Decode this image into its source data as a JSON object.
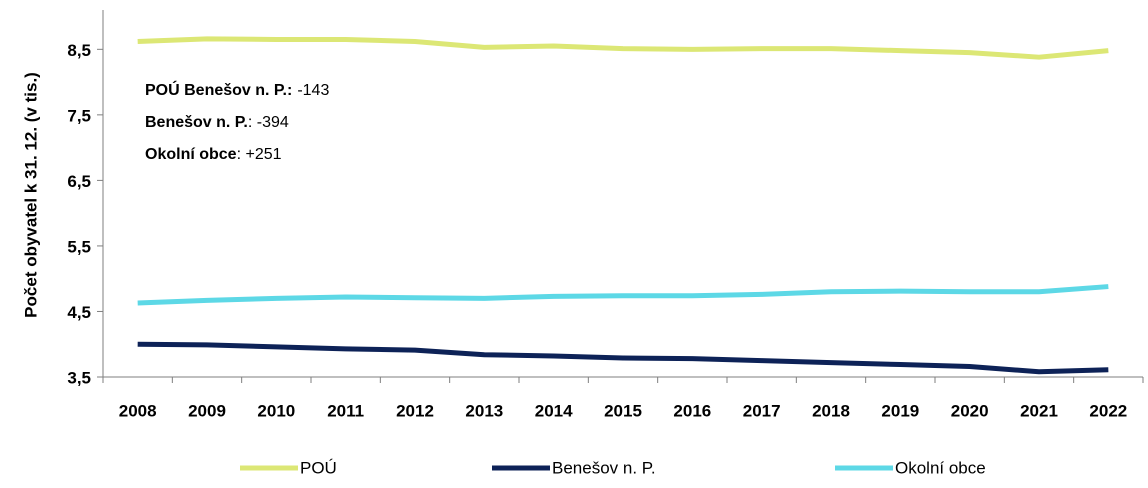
{
  "chart_data": {
    "type": "line",
    "y_label": "Počet obyvatel k 31. 12. (v tis.)",
    "categories": [
      "2008",
      "2009",
      "2010",
      "2011",
      "2012",
      "2013",
      "2014",
      "2015",
      "2016",
      "2017",
      "2018",
      "2019",
      "2020",
      "2021",
      "2022"
    ],
    "series": [
      {
        "name": "POÚ",
        "color": "#dce775",
        "values": [
          8.62,
          8.66,
          8.65,
          8.65,
          8.62,
          8.53,
          8.55,
          8.51,
          8.5,
          8.51,
          8.51,
          8.48,
          8.45,
          8.38,
          8.48
        ]
      },
      {
        "name": "Benešov n. P.",
        "color": "#0d2257",
        "values": [
          4.0,
          3.99,
          3.96,
          3.93,
          3.91,
          3.84,
          3.82,
          3.79,
          3.78,
          3.75,
          3.72,
          3.69,
          3.66,
          3.58,
          3.61
        ]
      },
      {
        "name": "Okolní obce",
        "color": "#5dd8e6",
        "values": [
          4.63,
          4.67,
          4.7,
          4.72,
          4.71,
          4.7,
          4.73,
          4.74,
          4.74,
          4.76,
          4.8,
          4.81,
          4.8,
          4.8,
          4.88
        ]
      }
    ],
    "ylim": [
      3.5,
      9.1
    ],
    "yticks": [
      {
        "value": 3.5,
        "label": "3,5"
      },
      {
        "value": 4.5,
        "label": "4,5"
      },
      {
        "value": 5.5,
        "label": "5,5"
      },
      {
        "value": 6.5,
        "label": "6,5"
      },
      {
        "value": 7.5,
        "label": "7,5"
      },
      {
        "value": 8.5,
        "label": "8,5"
      }
    ],
    "grid": false,
    "legend": "bottom",
    "annotations": [
      {
        "bold": "POÚ Benešov n. P.:",
        "text": "-143"
      },
      {
        "bold": "Benešov n. P.",
        "text": ": -394"
      },
      {
        "bold": "Okolní obce",
        "text": ": +251"
      }
    ]
  }
}
